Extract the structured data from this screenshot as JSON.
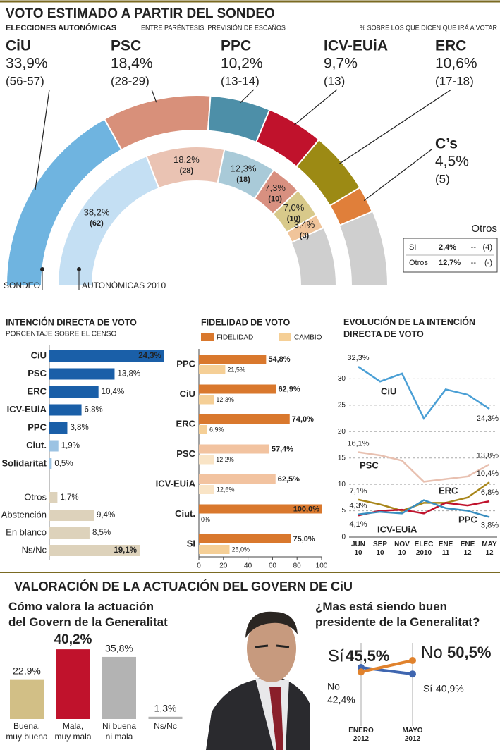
{
  "chart_data": [
    {
      "type": "semicircle",
      "title": "VOTO ESTIMADO A PARTIR DEL SONDEO",
      "subtitle": "ELECCIONES AUTONÓMICAS",
      "notes": [
        "ENTRE PARÉNTESIS, PREVISIÓN DE ESCAÑOS",
        "% SOBRE LOS QUE DICEN QUE IRÁ A VOTAR"
      ],
      "categories": [
        "CiU",
        "PSC",
        "PPC",
        "ICV-EUiA",
        "ERC",
        "C’s"
      ],
      "series": [
        {
          "name": "SONDEO",
          "colors": [
            "#6fb4e0",
            "#d8907a",
            "#4d8fa8",
            "#c0122c",
            "#9c8a14",
            "#e07f3a"
          ],
          "values": [
            33.9,
            18.4,
            10.2,
            9.7,
            10.6,
            4.5
          ],
          "value_labels": [
            "33,9%",
            "18,4%",
            "10,2%",
            "9,7%",
            "10,6%",
            "4,5%"
          ],
          "seats": [
            "(56-57)",
            "(28-29)",
            "(13-14)",
            "(13)",
            "(17-18)",
            "(5)"
          ]
        },
        {
          "name": "AUTONÓMICAS 2010",
          "colors": [
            "#c4dff3",
            "#eac3b3",
            "#a9cad8",
            "#d89080",
            "#d8c98a",
            "#f0c49a"
          ],
          "values": [
            38.2,
            18.2,
            12.3,
            7.3,
            7.0,
            3.4
          ],
          "value_labels": [
            "38,2%",
            "18,2%",
            "12,3%",
            "7,3%",
            "7,0%",
            "3,4%"
          ],
          "seats": [
            "(62)",
            "(28)",
            "(18)",
            "(10)",
            "(10)",
            "(3)"
          ]
        }
      ],
      "others_table": {
        "title": "Otros",
        "rows": [
          [
            "SI",
            "2,4%",
            "--",
            "(4)"
          ],
          [
            "Otros",
            "12,7%",
            "--",
            "(-)"
          ]
        ]
      }
    },
    {
      "type": "hbar",
      "title": "INTENCIÓN DIRECTA DE VOTO",
      "subtitle": "PORCENTAJE SOBRE EL CENSO",
      "categories": [
        "CiU",
        "PSC",
        "ERC",
        "ICV-EUiA",
        "PPC",
        "Ciut.",
        "Solidaritat",
        "Otros",
        "Abstención",
        "En blanco",
        "Ns/Nc"
      ],
      "values": [
        24.3,
        13.8,
        10.4,
        6.8,
        3.8,
        1.9,
        0.5,
        1.7,
        9.4,
        8.5,
        19.1
      ],
      "value_labels": [
        "24,3%",
        "13,8%",
        "10,4%",
        "6,8%",
        "3,8%",
        "1,9%",
        "0,5%",
        "1,7%",
        "9,4%",
        "8,5%",
        "19,1%"
      ],
      "colors": [
        "#1a5fa8",
        "#1a5fa8",
        "#1a5fa8",
        "#1a5fa8",
        "#1a5fa8",
        "#9cc3e3",
        "#9cc3e3",
        "#ddd2bb",
        "#ddd2bb",
        "#ddd2bb",
        "#ddd2bb"
      ]
    },
    {
      "type": "grouped_hbar",
      "title": "FIDELIDAD DE VOTO",
      "categories": [
        "PPC",
        "CiU",
        "ERC",
        "PSC",
        "ICV-EUiA",
        "Ciut.",
        "SI"
      ],
      "series": [
        {
          "name": "FIDELIDAD",
          "color": "#d9782d",
          "colors": [
            "#d9782d",
            "#d9782d",
            "#d9782d",
            "#f2c3a0",
            "#f2c3a0",
            "#d9782d",
            "#d9782d"
          ],
          "values": [
            54.8,
            62.9,
            74.0,
            57.4,
            62.5,
            100.0,
            75.0
          ],
          "value_labels": [
            "54,8%",
            "62,9%",
            "74,0%",
            "57,4%",
            "62,5%",
            "100,0%",
            "75,0%"
          ]
        },
        {
          "name": "CAMBIO",
          "color": "#f5cf96",
          "colors": [
            "#f5cf96",
            "#f5cf96",
            "#f5cf96",
            "#f9e4c6",
            "#f9e4c6",
            "#f5cf96",
            "#f5cf96"
          ],
          "values": [
            21.5,
            12.3,
            6.9,
            12.2,
            12.6,
            0,
            25.0
          ],
          "value_labels": [
            "21,5%",
            "12,3%",
            "6,9%",
            "12,2%",
            "12,6%",
            "0%",
            "25,0%"
          ]
        }
      ],
      "xlim": [
        0,
        100
      ],
      "xticks": [
        0,
        20,
        40,
        60,
        80,
        100
      ]
    },
    {
      "type": "line",
      "title": "EVOLUCIÓN DE LA INTENCIÓN DIRECTA DE VOTO",
      "categories": [
        "JUN\n10",
        "SEP\n10",
        "NOV\n10",
        "ELEC\n2010",
        "ENE\n11",
        "ENE\n12",
        "MAY\n12"
      ],
      "series": [
        {
          "name": "CiU",
          "color": "#4a9fd5",
          "values": [
            32.3,
            29.5,
            31.0,
            22.5,
            28.0,
            27.0,
            24.3
          ],
          "value_labels": [
            "32,3%",
            null,
            null,
            null,
            null,
            null,
            "24,3%"
          ]
        },
        {
          "name": "PSC",
          "color": "#e8c0b0",
          "values": [
            16.1,
            15.5,
            14.5,
            10.5,
            11.0,
            11.5,
            13.8
          ],
          "value_labels": [
            "16,1%",
            null,
            null,
            null,
            null,
            null,
            "13,8%"
          ]
        },
        {
          "name": "ERC",
          "color": "#a8861a",
          "values": [
            7.1,
            6.2,
            5.0,
            6.5,
            6.5,
            7.5,
            10.4
          ],
          "value_labels": [
            "7,1%",
            null,
            null,
            null,
            null,
            null,
            "10,4%"
          ]
        },
        {
          "name": "ICV-EUiA",
          "color": "#c0122c",
          "values": [
            4.1,
            5.0,
            5.2,
            4.5,
            6.5,
            6.0,
            6.8
          ],
          "value_labels": [
            "4,1%",
            null,
            null,
            null,
            null,
            null,
            "6,8%"
          ]
        },
        {
          "name": "PPC",
          "color": "#3a8fc0",
          "values": [
            4.3,
            4.8,
            4.5,
            7.0,
            5.5,
            5.0,
            3.8
          ],
          "value_labels": [
            "4,3%",
            null,
            null,
            null,
            null,
            null,
            "3,8%"
          ]
        }
      ],
      "ylim": [
        0,
        35
      ],
      "yticks": [
        0,
        5,
        10,
        15,
        20,
        25,
        30
      ],
      "grid": true
    },
    {
      "type": "bar",
      "heading": "VALORACIÓN DE LA ACTUACIÓN DEL GOVERN DE CiU",
      "title": "Cómo valora la actuación del Govern de la Generalitat",
      "categories": [
        "Buena,\nmuy buena",
        "Mala,\nmuy mala",
        "Ni buena\nni mala",
        "Ns/Nc"
      ],
      "values": [
        22.9,
        40.2,
        35.8,
        1.3
      ],
      "value_labels": [
        "22,9%",
        "40,2%",
        "35,8%",
        "1,3%"
      ],
      "colors": [
        "#d2bf86",
        "#c0122c",
        "#b3b3b3",
        "#b3b3b3"
      ]
    },
    {
      "type": "slope",
      "title": "¿Mas está siendo buen presidente de la Generalitat?",
      "categories": [
        "ENERO\n2012",
        "MAYO\n2012"
      ],
      "series": [
        {
          "name": "Sí",
          "color": "#3f66b0",
          "values": [
            45.5,
            40.9
          ],
          "value_labels": [
            "45,5%",
            "40,9%"
          ]
        },
        {
          "name": "No",
          "color": "#e0822d",
          "values": [
            42.4,
            50.5
          ],
          "value_labels": [
            "42,4%",
            "50,5%"
          ]
        }
      ]
    }
  ]
}
